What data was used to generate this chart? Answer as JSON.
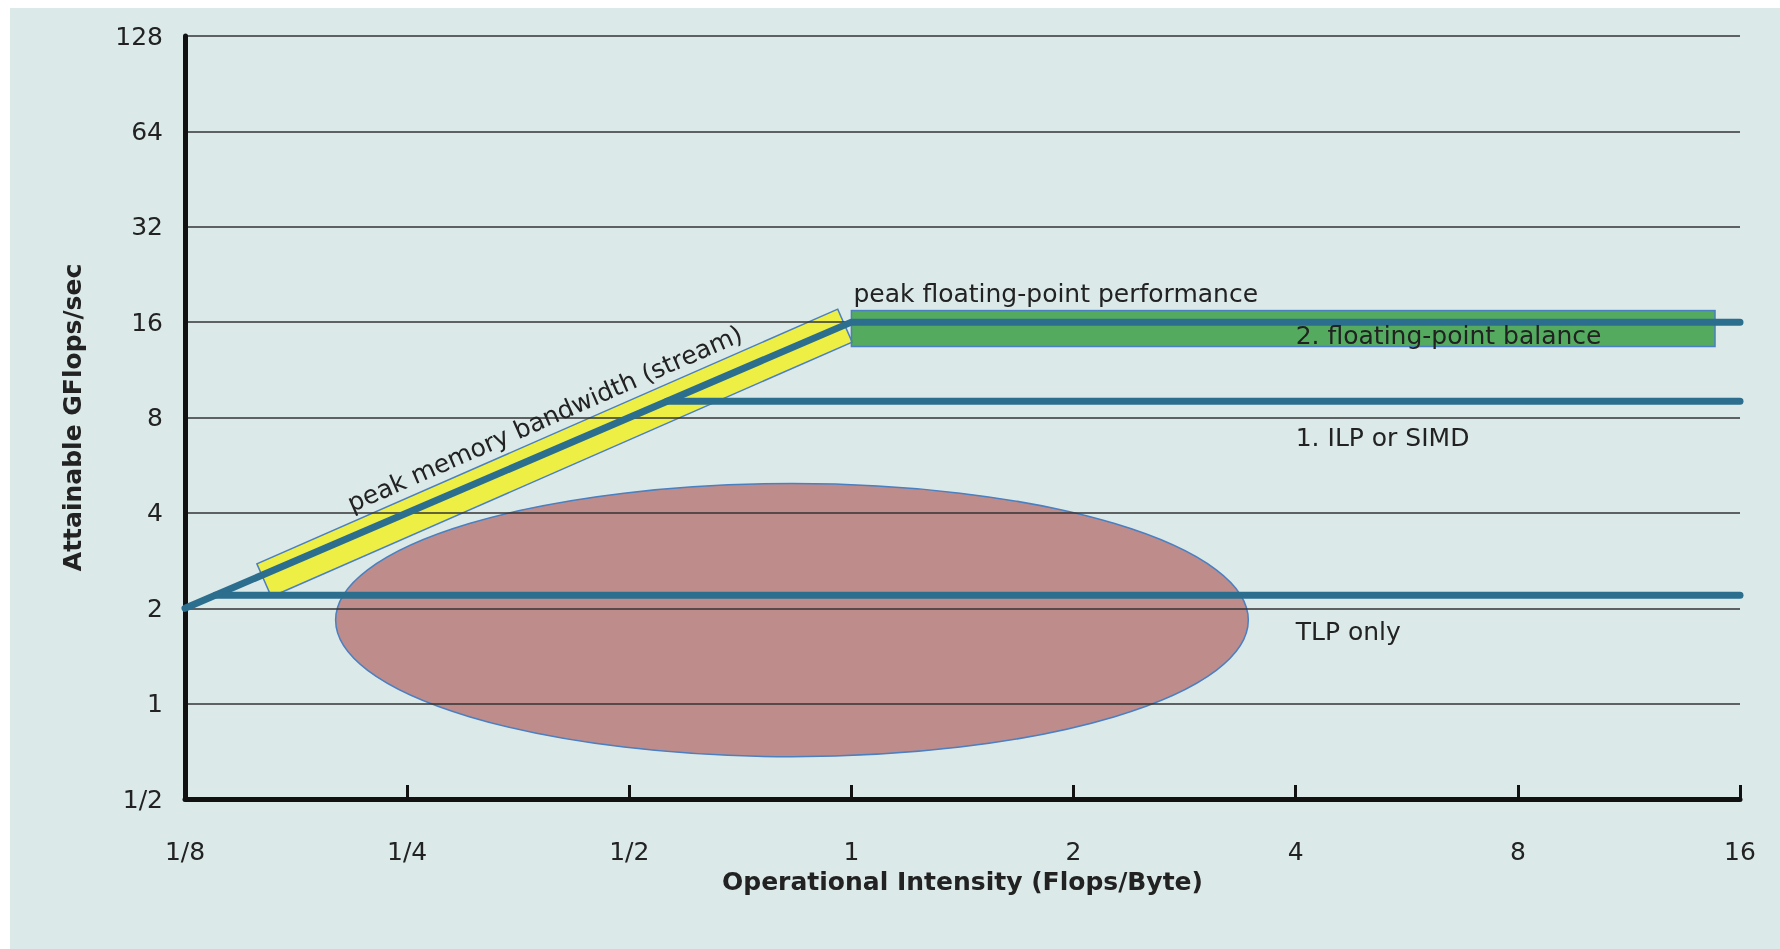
{
  "chart_data": {
    "type": "line",
    "xlabel": "Operational Intensity (Flops/Byte)",
    "ylabel": "Attainable GFlops/sec",
    "log": "xy",
    "xlim": [
      0.125,
      16
    ],
    "xticks": [
      {
        "value": 0.125,
        "label": "1/8"
      },
      {
        "value": 0.25,
        "label": "1/4"
      },
      {
        "value": 0.5,
        "label": "1/2"
      },
      1,
      2,
      4,
      8,
      16
    ],
    "ylim": [
      0.5,
      128
    ],
    "yticks": [
      {
        "value": 0.5,
        "label": "1/2"
      },
      1,
      2,
      4,
      8,
      16,
      32,
      64,
      128
    ],
    "grid": "y",
    "marker": "none",
    "line_style": "solid",
    "series": [
      {
        "color": "#2c6e8e",
        "x": [
          0.125,
          1,
          16
        ],
        "values": [
          2,
          16,
          16
        ]
      },
      {
        "color": "#2c6e8e",
        "x": [
          0.5625,
          16
        ],
        "values": [
          9,
          9
        ]
      },
      {
        "color": "#2c6e8e",
        "x": [
          0.1375,
          16
        ],
        "values": [
          2.2,
          2.2
        ]
      }
    ],
    "annotations": [
      {
        "text": "peak memory bandwidth (stream)",
        "x": 0.4,
        "y": 6.4
      },
      {
        "text": "peak floating-point performance",
        "x": 1,
        "y": 16
      },
      {
        "text": "2. floating-point balance",
        "x": 4,
        "y": 16
      },
      {
        "text": "1. ILP or SIMD",
        "x": 4,
        "y": 9
      },
      {
        "text": "TLP only",
        "x": 4,
        "y": 2.2
      }
    ]
  }
}
